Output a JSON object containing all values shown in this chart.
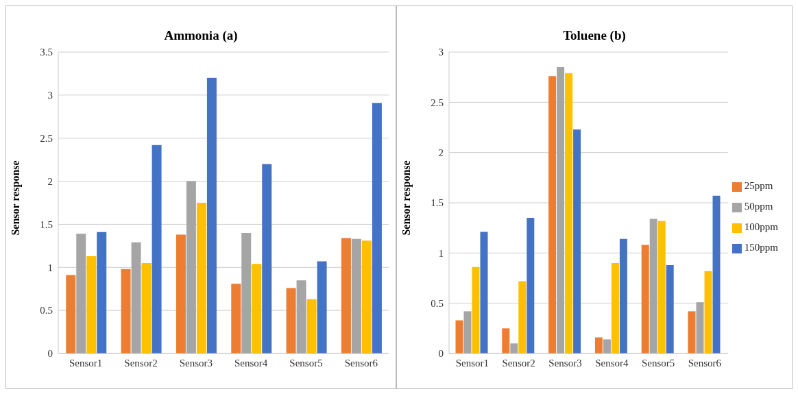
{
  "chart_data": [
    {
      "type": "bar",
      "title": "Ammonia  (a)",
      "ylabel": "Sensor response",
      "categories": [
        "Sensor1",
        "Sensor2",
        "Sensor3",
        "Sensor4",
        "Sensor5",
        "Sensor6"
      ],
      "series": [
        {
          "color": "#ed7d31",
          "values": [
            0.91,
            0.98,
            1.38,
            0.81,
            0.76,
            1.34
          ]
        },
        {
          "color": "#a5a5a5",
          "values": [
            1.39,
            1.29,
            2.0,
            1.4,
            0.85,
            1.33
          ]
        },
        {
          "color": "#ffc000",
          "values": [
            1.13,
            1.05,
            1.75,
            1.04,
            0.63,
            1.31
          ]
        },
        {
          "color": "#4472c4",
          "values": [
            1.41,
            2.42,
            3.2,
            2.2,
            1.07,
            2.91
          ]
        }
      ],
      "ylim": [
        0,
        3.5
      ],
      "yticks": [
        0,
        0.5,
        1,
        1.5,
        2,
        2.5,
        3,
        3.5
      ],
      "grid": "y",
      "legend": false
    },
    {
      "type": "bar",
      "title": "Toluene (b)",
      "ylabel": "Sensor response",
      "categories": [
        "Sensor1",
        "Sensor2",
        "Sensor3",
        "Sensor4",
        "Sensor5",
        "Sensor6"
      ],
      "series": [
        {
          "name": "25ppm",
          "color": "#ed7d31",
          "values": [
            0.33,
            0.25,
            2.76,
            0.16,
            1.08,
            0.42
          ]
        },
        {
          "name": "50ppm",
          "color": "#a5a5a5",
          "values": [
            0.42,
            0.1,
            2.85,
            0.14,
            1.34,
            0.51
          ]
        },
        {
          "name": "100ppm",
          "color": "#ffc000",
          "values": [
            0.86,
            0.72,
            2.79,
            0.9,
            1.32,
            0.82
          ]
        },
        {
          "name": "150ppm",
          "color": "#4472c4",
          "values": [
            1.21,
            1.35,
            2.23,
            1.14,
            0.88,
            1.57
          ]
        }
      ],
      "ylim": [
        0,
        3
      ],
      "yticks": [
        0,
        0.5,
        1,
        1.5,
        2,
        2.5,
        3
      ],
      "grid": "y",
      "legend": "right"
    }
  ]
}
